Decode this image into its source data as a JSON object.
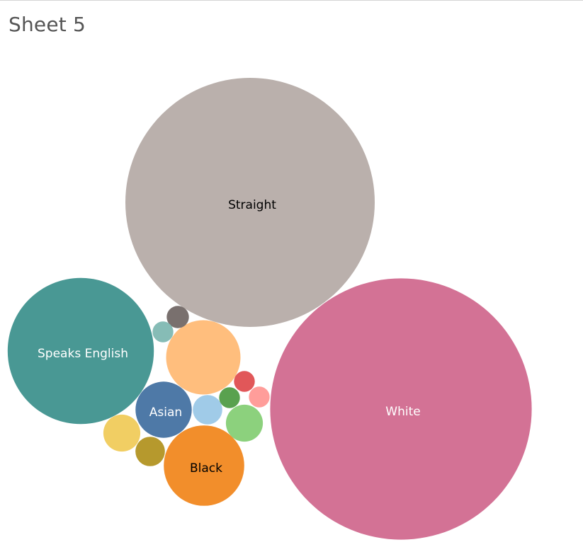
{
  "sheet": {
    "title": "Sheet 5"
  },
  "chart_data": {
    "type": "packed-bubble",
    "title": "Sheet 5",
    "bubbles": [
      {
        "label": "Straight",
        "value": 1000,
        "color": "#bab0ac",
        "label_color": "#000000"
      },
      {
        "label": "White",
        "value": 1100,
        "color": "#d37295",
        "label_color": "#ffffff"
      },
      {
        "label": "Speaks English",
        "value": 344,
        "color": "#499894",
        "label_color": "#ffffff"
      },
      {
        "label": "",
        "value": 89,
        "color": "#ffbe7d"
      },
      {
        "label": "Black",
        "value": 104,
        "color": "#f28e2b",
        "label_color": "#000000"
      },
      {
        "label": "Asian",
        "value": 51,
        "color": "#4e79a7",
        "label_color": "#ffffff"
      },
      {
        "label": "",
        "value": 22,
        "color": "#8cd17d"
      },
      {
        "label": "",
        "value": 22,
        "color": "#f1ce63"
      },
      {
        "label": "",
        "value": 14,
        "color": "#a0cbe8"
      },
      {
        "label": "",
        "value": 14,
        "color": "#b6992d"
      },
      {
        "label": "",
        "value": 8,
        "color": "#79706e"
      },
      {
        "label": "",
        "value": 7,
        "color": "#e15759"
      },
      {
        "label": "",
        "value": 7,
        "color": "#86bcb6"
      },
      {
        "label": "",
        "value": 7,
        "color": "#ff9d9a"
      },
      {
        "label": "",
        "value": 7,
        "color": "#59a14f"
      }
    ]
  }
}
